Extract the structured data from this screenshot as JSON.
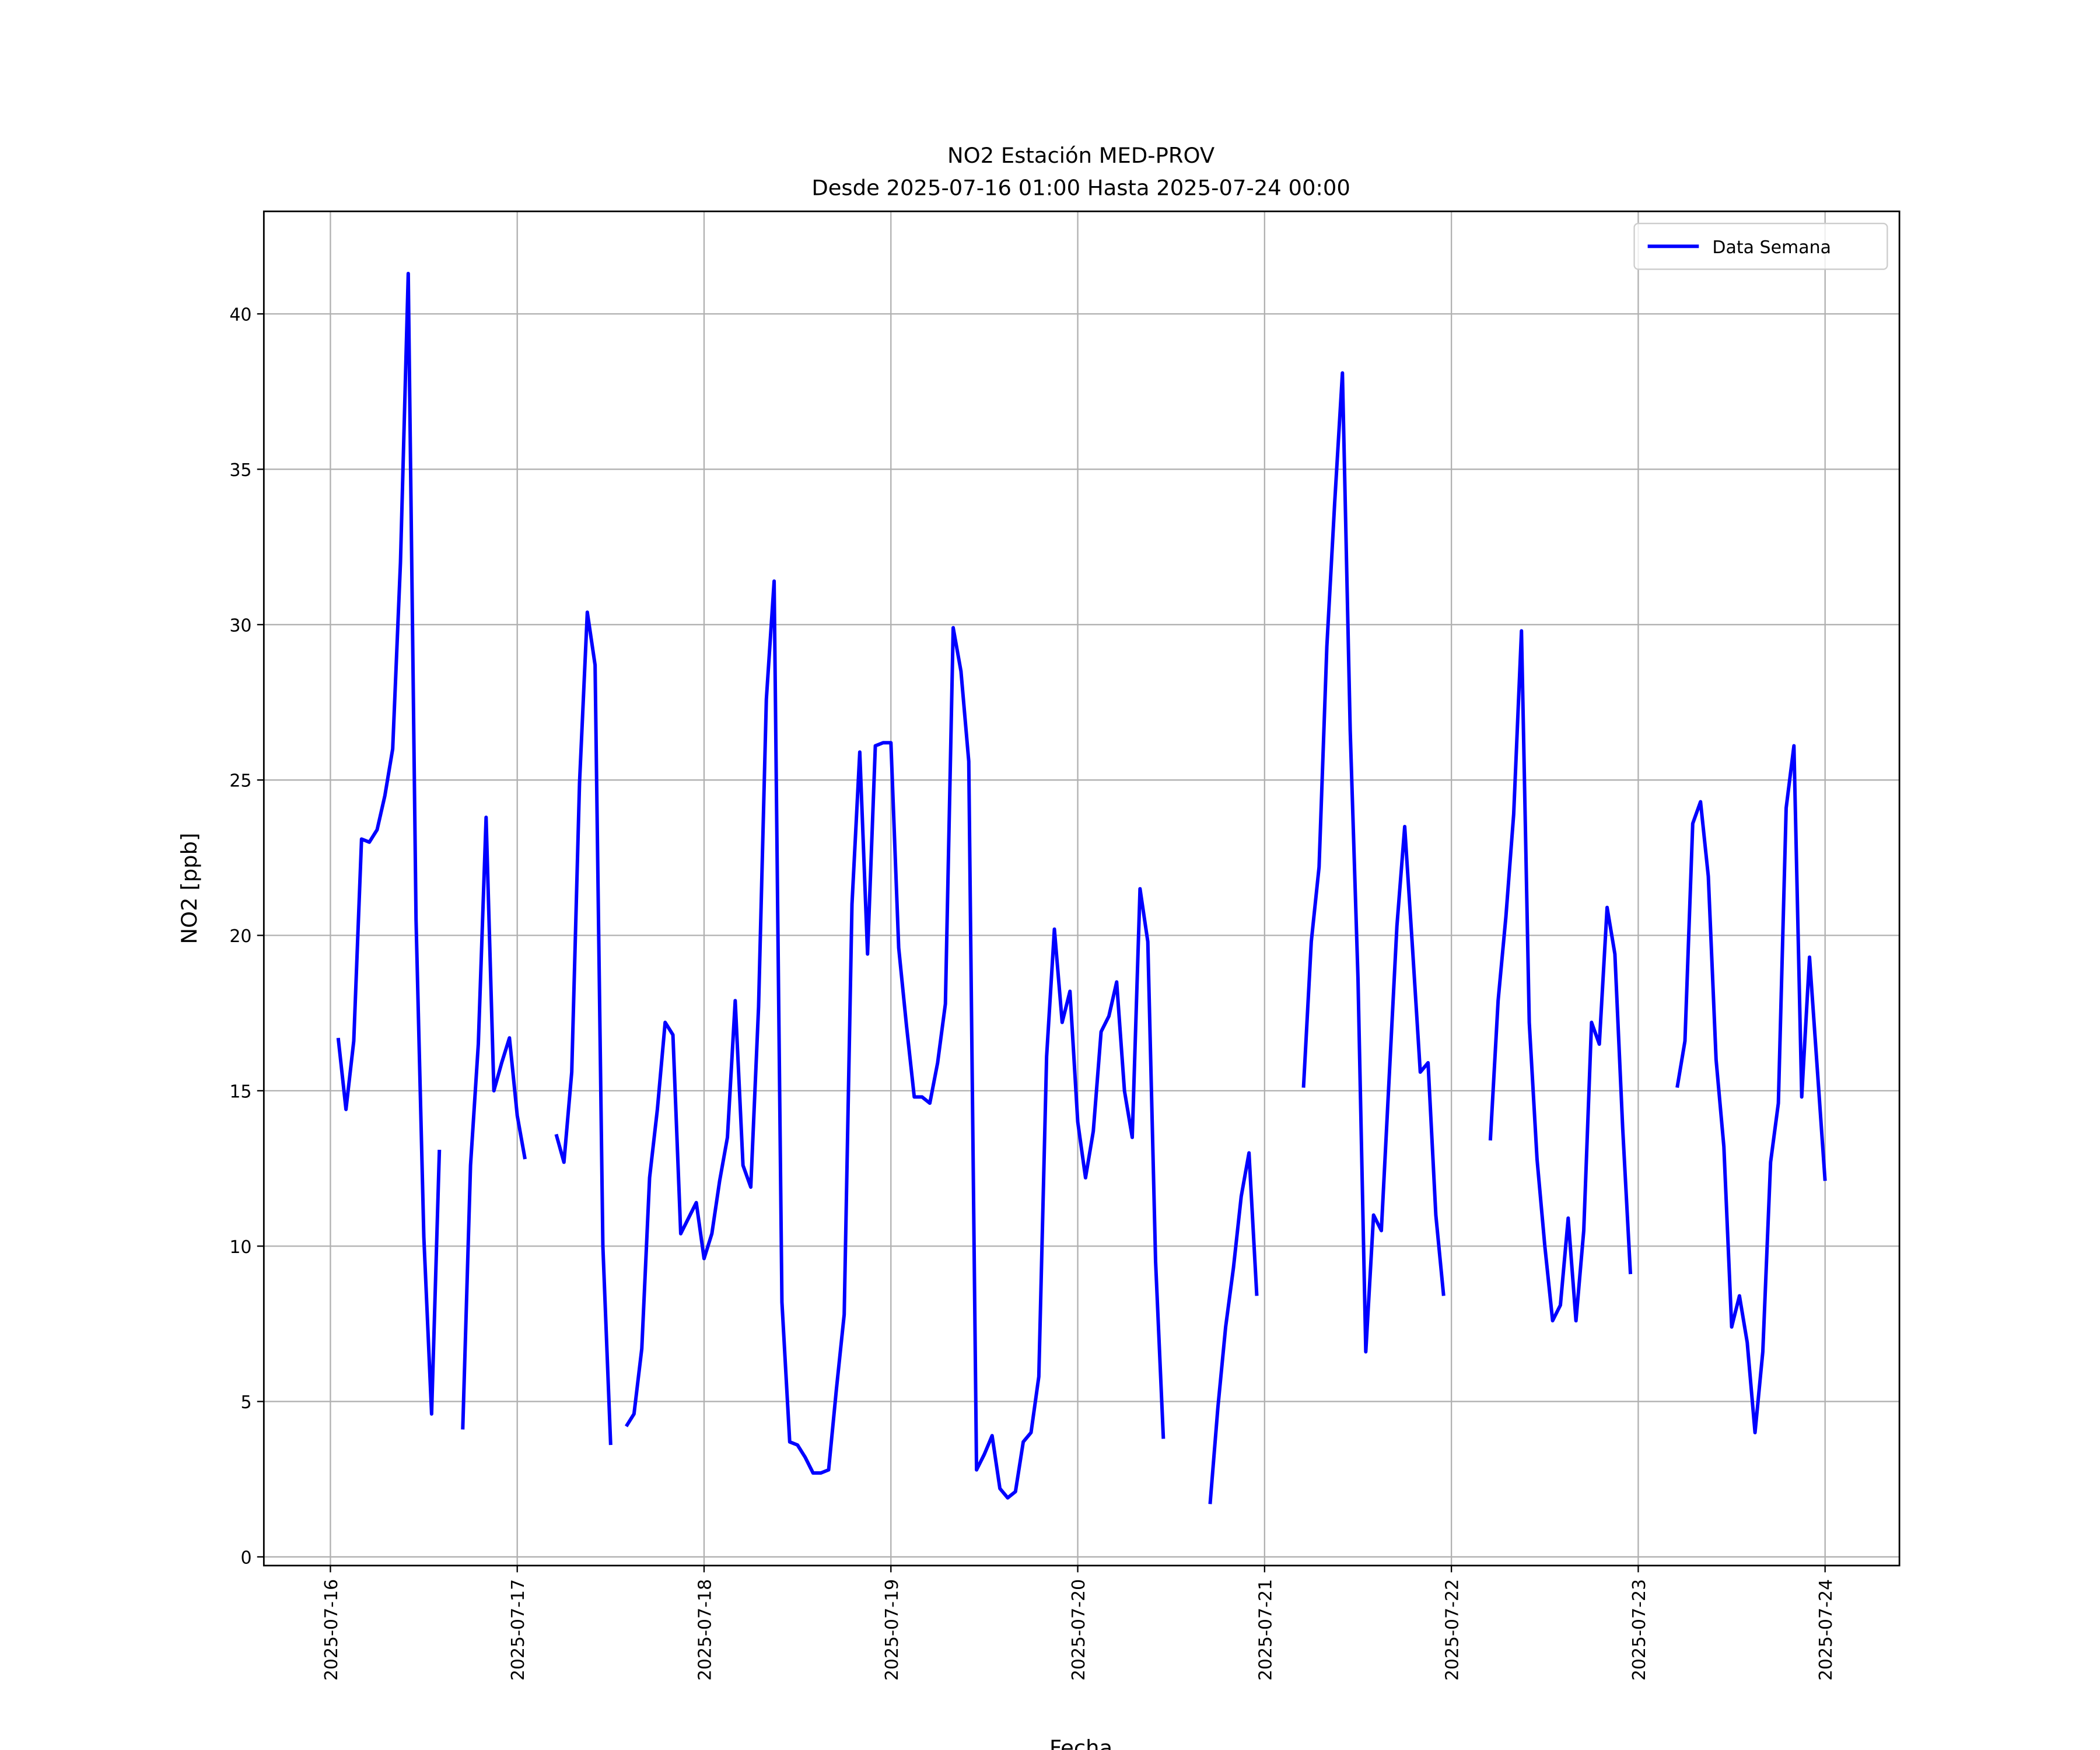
{
  "chart_data": {
    "type": "line",
    "title": "NO2 Estación MED-PROV",
    "subtitle": "Desde 2025-07-16 01:00 Hasta 2025-07-24 00:00",
    "x_label": "Fecha",
    "y_label": "NO2 [ppb]",
    "grid": true,
    "legend": "upper right",
    "xlim": [
      "2025-07-15 15:27",
      "2025-07-24 09:33"
    ],
    "ylim": [
      -0.28,
      43.3
    ],
    "xticks": [
      "2025-07-16",
      "2025-07-17",
      "2025-07-18",
      "2025-07-19",
      "2025-07-20",
      "2025-07-21",
      "2025-07-22",
      "2025-07-23",
      "2025-07-24"
    ],
    "yticks": [
      0,
      5,
      10,
      15,
      20,
      25,
      30,
      35,
      40
    ],
    "x": [
      "2025-07-16 01:00",
      "2025-07-16 02:00",
      "2025-07-16 03:00",
      "2025-07-16 04:00",
      "2025-07-16 05:00",
      "2025-07-16 06:00",
      "2025-07-16 07:00",
      "2025-07-16 08:00",
      "2025-07-16 09:00",
      "2025-07-16 10:00",
      "2025-07-16 11:00",
      "2025-07-16 12:00",
      "2025-07-16 13:00",
      "2025-07-16 14:00",
      "2025-07-16 15:00",
      "2025-07-16 16:00",
      "2025-07-16 17:00",
      "2025-07-16 18:00",
      "2025-07-16 19:00",
      "2025-07-16 20:00",
      "2025-07-16 21:00",
      "2025-07-16 22:00",
      "2025-07-16 23:00",
      "2025-07-17 00:00",
      "2025-07-17 01:00",
      "2025-07-17 02:00",
      "2025-07-17 03:00",
      "2025-07-17 04:00",
      "2025-07-17 05:00",
      "2025-07-17 06:00",
      "2025-07-17 07:00",
      "2025-07-17 08:00",
      "2025-07-17 09:00",
      "2025-07-17 10:00",
      "2025-07-17 11:00",
      "2025-07-17 12:00",
      "2025-07-17 13:00",
      "2025-07-17 14:00",
      "2025-07-17 15:00",
      "2025-07-17 16:00",
      "2025-07-17 17:00",
      "2025-07-17 18:00",
      "2025-07-17 19:00",
      "2025-07-17 20:00",
      "2025-07-17 21:00",
      "2025-07-17 22:00",
      "2025-07-17 23:00",
      "2025-07-18 00:00",
      "2025-07-18 01:00",
      "2025-07-18 02:00",
      "2025-07-18 03:00",
      "2025-07-18 04:00",
      "2025-07-18 05:00",
      "2025-07-18 06:00",
      "2025-07-18 07:00",
      "2025-07-18 08:00",
      "2025-07-18 09:00",
      "2025-07-18 10:00",
      "2025-07-18 11:00",
      "2025-07-18 12:00",
      "2025-07-18 13:00",
      "2025-07-18 14:00",
      "2025-07-18 15:00",
      "2025-07-18 16:00",
      "2025-07-18 17:00",
      "2025-07-18 18:00",
      "2025-07-18 19:00",
      "2025-07-18 20:00",
      "2025-07-18 21:00",
      "2025-07-18 22:00",
      "2025-07-18 23:00",
      "2025-07-19 00:00",
      "2025-07-19 01:00",
      "2025-07-19 02:00",
      "2025-07-19 03:00",
      "2025-07-19 04:00",
      "2025-07-19 05:00",
      "2025-07-19 06:00",
      "2025-07-19 07:00",
      "2025-07-19 08:00",
      "2025-07-19 09:00",
      "2025-07-19 10:00",
      "2025-07-19 11:00",
      "2025-07-19 12:00",
      "2025-07-19 13:00",
      "2025-07-19 14:00",
      "2025-07-19 15:00",
      "2025-07-19 16:00",
      "2025-07-19 17:00",
      "2025-07-19 18:00",
      "2025-07-19 19:00",
      "2025-07-19 20:00",
      "2025-07-19 21:00",
      "2025-07-19 22:00",
      "2025-07-19 23:00",
      "2025-07-20 00:00",
      "2025-07-20 01:00",
      "2025-07-20 02:00",
      "2025-07-20 03:00",
      "2025-07-20 04:00",
      "2025-07-20 05:00",
      "2025-07-20 06:00",
      "2025-07-20 07:00",
      "2025-07-20 08:00",
      "2025-07-20 09:00",
      "2025-07-20 10:00",
      "2025-07-20 11:00",
      "2025-07-20 12:00",
      "2025-07-20 13:00",
      "2025-07-20 14:00",
      "2025-07-20 15:00",
      "2025-07-20 16:00",
      "2025-07-20 17:00",
      "2025-07-20 18:00",
      "2025-07-20 19:00",
      "2025-07-20 20:00",
      "2025-07-20 21:00",
      "2025-07-20 22:00",
      "2025-07-20 23:00",
      "2025-07-21 00:00",
      "2025-07-21 01:00",
      "2025-07-21 02:00",
      "2025-07-21 03:00",
      "2025-07-21 04:00",
      "2025-07-21 05:00",
      "2025-07-21 06:00",
      "2025-07-21 07:00",
      "2025-07-21 08:00",
      "2025-07-21 09:00",
      "2025-07-21 10:00",
      "2025-07-21 11:00",
      "2025-07-21 12:00",
      "2025-07-21 13:00",
      "2025-07-21 14:00",
      "2025-07-21 15:00",
      "2025-07-21 16:00",
      "2025-07-21 17:00",
      "2025-07-21 18:00",
      "2025-07-21 19:00",
      "2025-07-21 20:00",
      "2025-07-21 21:00",
      "2025-07-21 22:00",
      "2025-07-21 23:00",
      "2025-07-22 00:00",
      "2025-07-22 01:00",
      "2025-07-22 02:00",
      "2025-07-22 03:00",
      "2025-07-22 04:00",
      "2025-07-22 05:00",
      "2025-07-22 06:00",
      "2025-07-22 07:00",
      "2025-07-22 08:00",
      "2025-07-22 09:00",
      "2025-07-22 10:00",
      "2025-07-22 11:00",
      "2025-07-22 12:00",
      "2025-07-22 13:00",
      "2025-07-22 14:00",
      "2025-07-22 15:00",
      "2025-07-22 16:00",
      "2025-07-22 17:00",
      "2025-07-22 18:00",
      "2025-07-22 19:00",
      "2025-07-22 20:00",
      "2025-07-22 21:00",
      "2025-07-22 22:00",
      "2025-07-22 23:00",
      "2025-07-23 00:00",
      "2025-07-23 01:00",
      "2025-07-23 02:00",
      "2025-07-23 03:00",
      "2025-07-23 04:00",
      "2025-07-23 05:00",
      "2025-07-23 06:00",
      "2025-07-23 07:00",
      "2025-07-23 08:00",
      "2025-07-23 09:00",
      "2025-07-23 10:00",
      "2025-07-23 11:00",
      "2025-07-23 12:00",
      "2025-07-23 13:00",
      "2025-07-23 14:00",
      "2025-07-23 15:00",
      "2025-07-23 16:00",
      "2025-07-23 17:00",
      "2025-07-23 18:00",
      "2025-07-23 19:00",
      "2025-07-23 20:00",
      "2025-07-23 21:00",
      "2025-07-23 22:00",
      "2025-07-23 23:00",
      "2025-07-24 00:00"
    ],
    "series": [
      {
        "name": "Data Semana",
        "color": "#0000ff",
        "values": [
          16.7,
          14.4,
          16.6,
          23.1,
          23.0,
          23.4,
          24.5,
          26.0,
          32.0,
          41.3,
          20.5,
          10.3,
          4.6,
          13.1,
          null,
          null,
          4.1,
          12.6,
          16.5,
          23.8,
          15.0,
          15.9,
          16.7,
          14.2,
          12.8,
          null,
          null,
          null,
          13.6,
          12.7,
          15.6,
          24.9,
          30.4,
          28.7,
          10.0,
          3.6,
          null,
          4.2,
          4.6,
          6.7,
          12.2,
          14.4,
          17.2,
          16.8,
          10.4,
          10.9,
          11.4,
          9.6,
          10.4,
          12.1,
          13.5,
          17.9,
          12.6,
          11.9,
          17.7,
          27.6,
          31.4,
          8.2,
          3.7,
          3.6,
          3.2,
          2.7,
          2.7,
          2.8,
          5.4,
          7.8,
          21.0,
          25.9,
          19.4,
          26.1,
          26.2,
          26.2,
          19.6,
          17.1,
          14.8,
          14.8,
          14.6,
          15.9,
          17.8,
          29.9,
          28.5,
          25.6,
          2.8,
          3.3,
          3.9,
          2.2,
          1.9,
          2.1,
          3.7,
          4.0,
          5.8,
          16.1,
          20.2,
          17.2,
          18.2,
          14.0,
          12.2,
          13.7,
          16.9,
          17.4,
          18.5,
          15.0,
          13.5,
          21.5,
          19.8,
          9.5,
          3.8,
          null,
          null,
          null,
          null,
          null,
          1.7,
          4.8,
          7.4,
          9.3,
          11.6,
          13.0,
          8.4,
          null,
          null,
          null,
          null,
          null,
          15.1,
          19.8,
          22.2,
          29.3,
          33.9,
          38.1,
          26.6,
          18.6,
          6.6,
          11.0,
          10.5,
          15.4,
          20.3,
          23.5,
          19.6,
          15.6,
          15.9,
          11.0,
          8.4,
          null,
          null,
          null,
          null,
          null,
          13.4,
          17.9,
          20.6,
          23.9,
          29.8,
          17.2,
          12.8,
          10.0,
          7.6,
          8.1,
          10.9,
          7.6,
          10.5,
          17.2,
          16.5,
          20.9,
          19.4,
          13.8,
          9.1,
          null,
          null,
          null,
          null,
          null,
          15.1,
          16.6,
          23.6,
          24.3,
          21.9,
          16.0,
          13.2,
          7.4,
          8.4,
          6.9,
          4.0,
          6.6,
          12.7,
          14.6,
          24.1,
          26.1,
          14.8,
          19.3,
          15.7,
          12.1
        ]
      }
    ]
  }
}
